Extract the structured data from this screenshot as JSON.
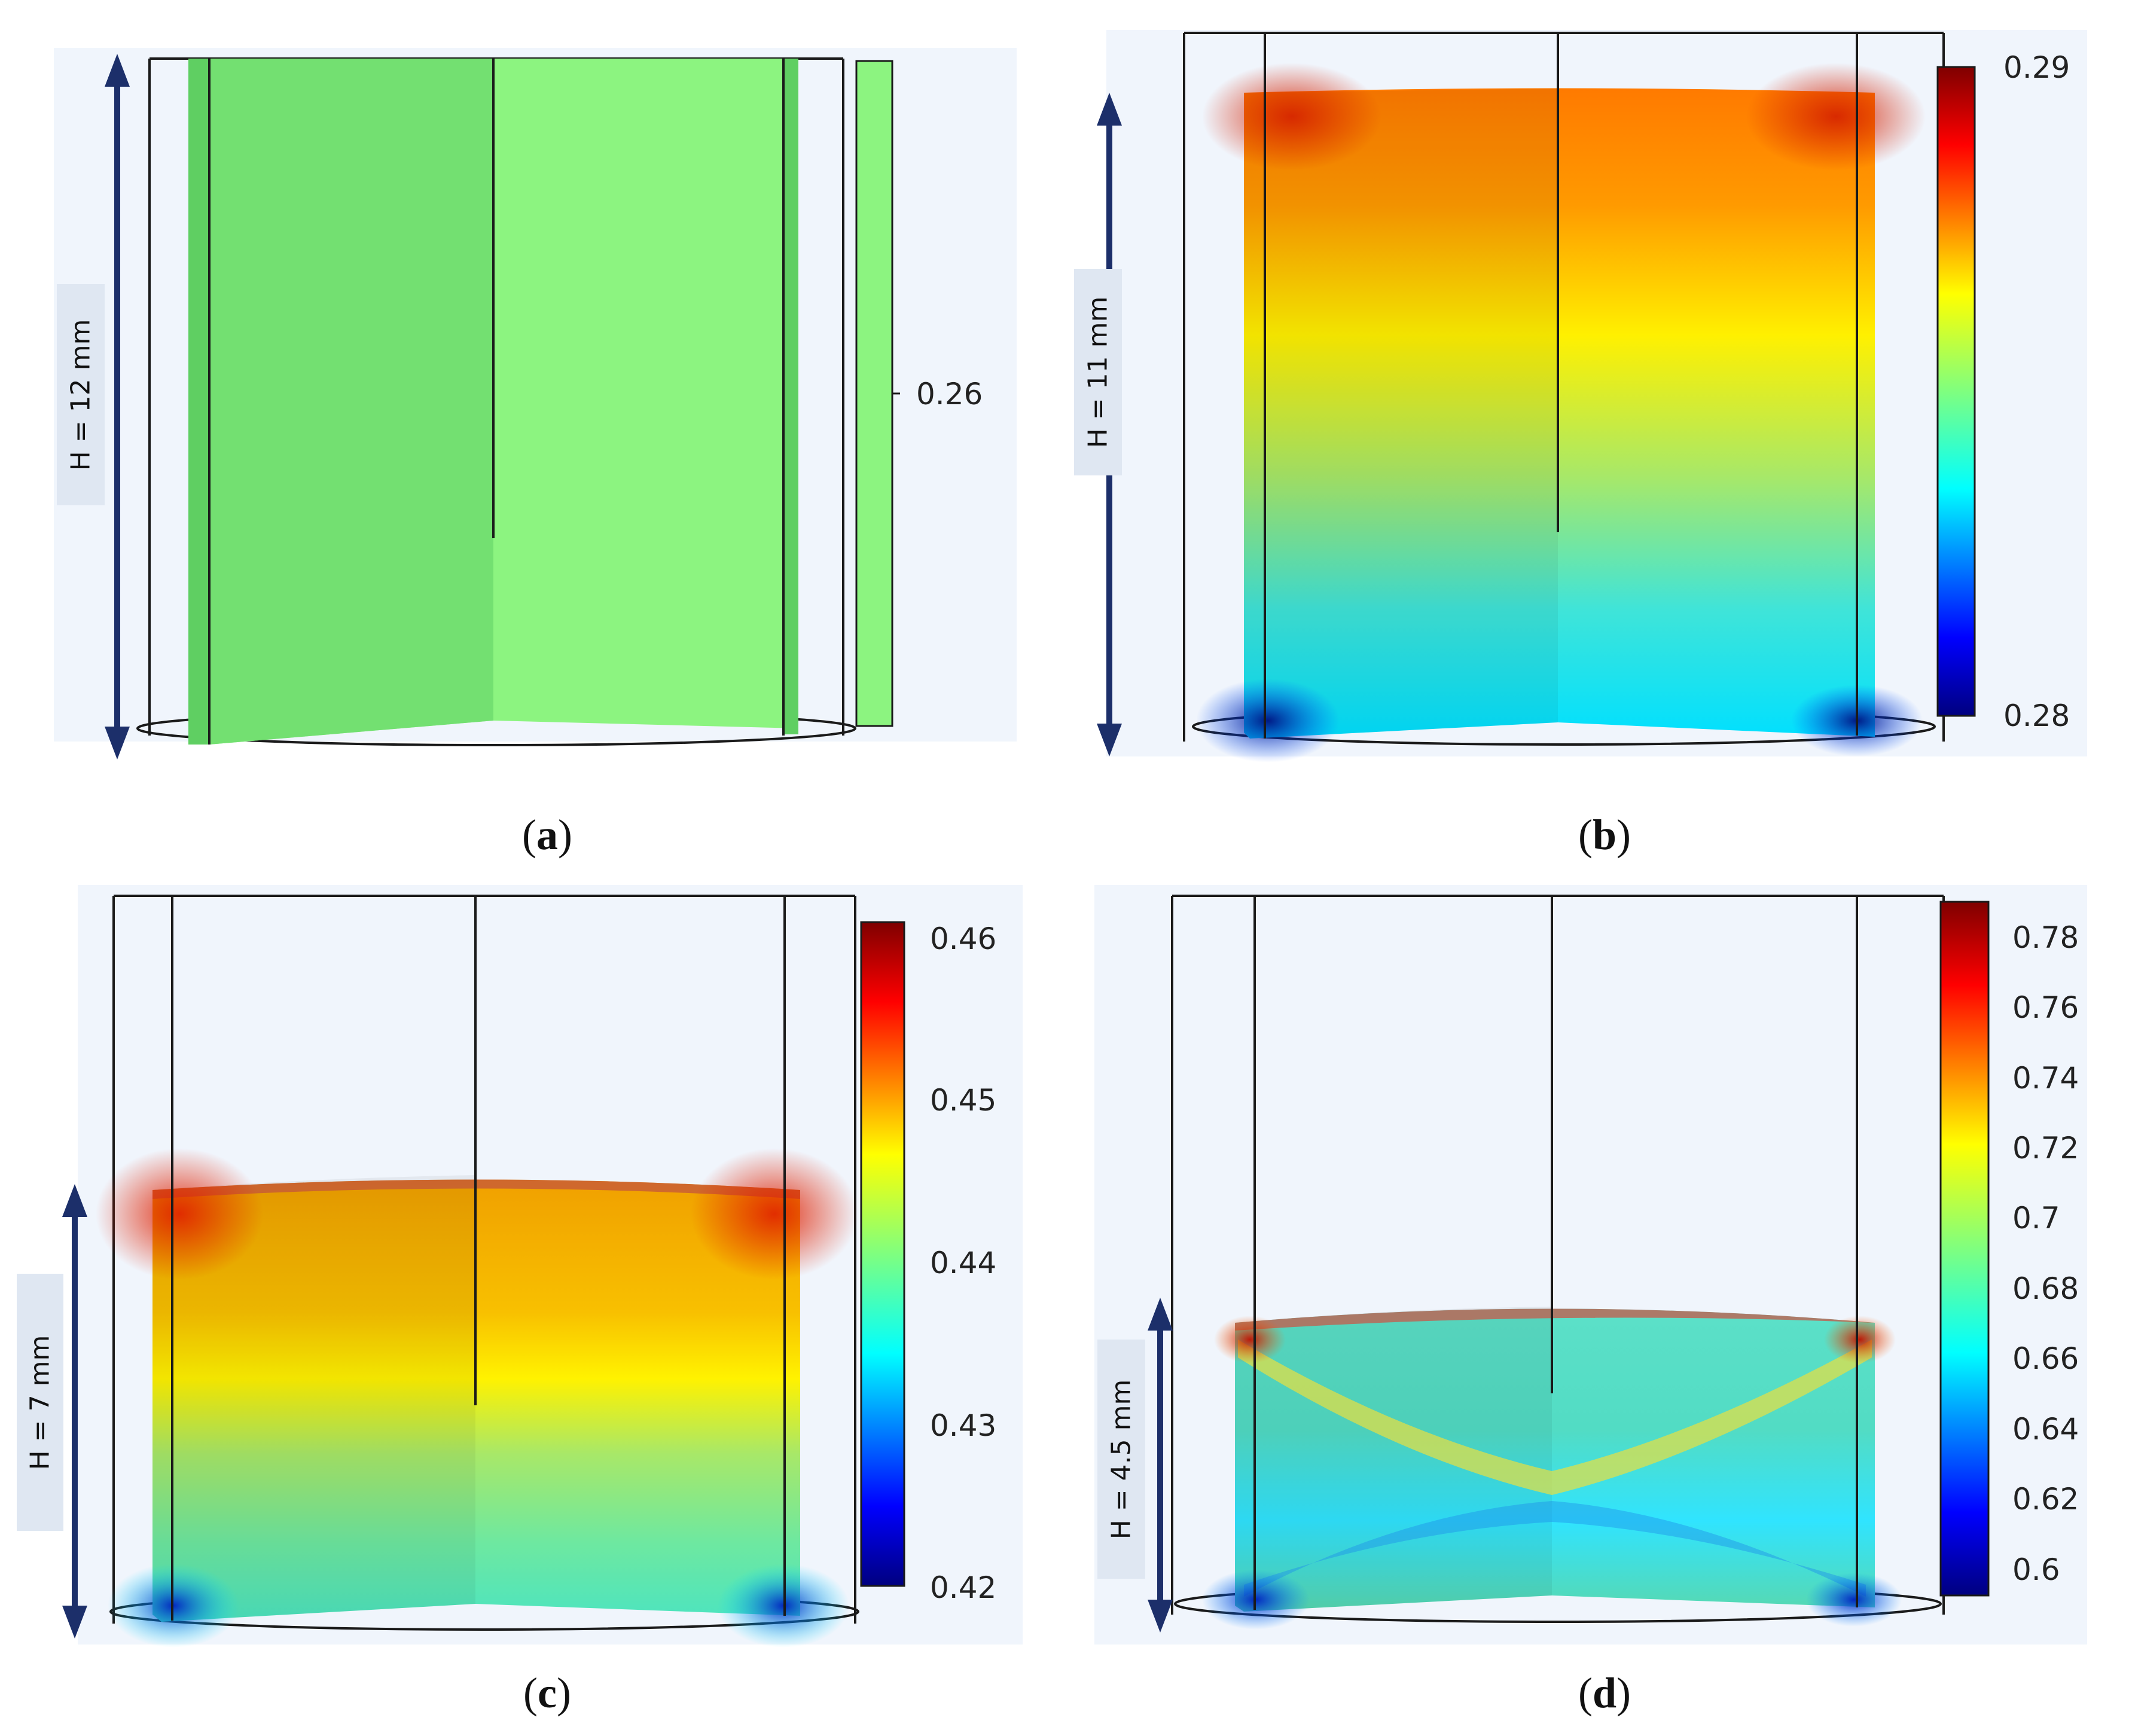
{
  "panels": [
    {
      "id": "a",
      "height_label": "H = 12 mm",
      "caption_open": "(",
      "caption_letter": "a",
      "caption_close": ")",
      "colorbar_ticks": [
        "0.26"
      ],
      "colorbar_type": "uniform",
      "colorbar_color": "#8cf480"
    },
    {
      "id": "b",
      "height_label": "H = 11 mm",
      "caption_open": "(",
      "caption_letter": "b",
      "caption_close": ")",
      "colorbar_ticks": [
        "0.29",
        "0.28"
      ],
      "colorbar_type": "jet"
    },
    {
      "id": "c",
      "height_label": "H = 7 mm",
      "caption_open": "(",
      "caption_letter": "c",
      "caption_close": ")",
      "colorbar_ticks": [
        "0.46",
        "0.45",
        "0.44",
        "0.43",
        "0.42"
      ],
      "colorbar_type": "jet"
    },
    {
      "id": "d",
      "height_label": "H = 4.5 mm",
      "caption_open": "(",
      "caption_letter": "d",
      "caption_close": ")",
      "colorbar_ticks": [
        "0.78",
        "0.76",
        "0.74",
        "0.72",
        "0.7",
        "0.68",
        "0.66",
        "0.64",
        "0.62",
        "0.6"
      ],
      "colorbar_type": "jet"
    }
  ],
  "colors": {
    "arrow": "#1c2f6a",
    "background_panel": "#f0f5fc",
    "label_bg": "#dfe7f2",
    "outline": "#1a1a1a"
  }
}
